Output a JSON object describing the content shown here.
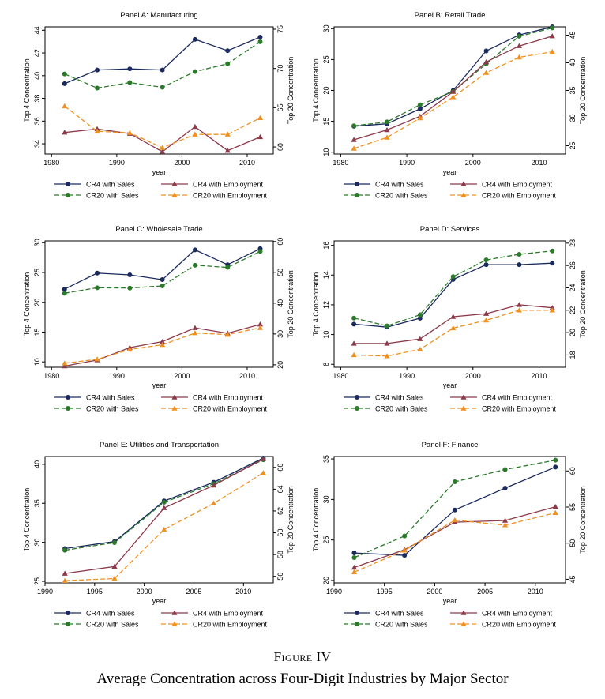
{
  "figure": {
    "label": "Figure IV",
    "caption": "Average Concentration across Four-Digit Industries by Major Sector"
  },
  "legend": {
    "cr4_sales": "CR4 with Sales",
    "cr4_emp": "CR4 with Employment",
    "cr20_sales": "CR20 with Sales",
    "cr20_emp": "CR20 with Employment"
  },
  "colors": {
    "cr4_sales": "#1a2a5e",
    "cr4_emp": "#8b3a4a",
    "cr20_sales": "#2a7a2a",
    "cr20_emp": "#f09020"
  },
  "chart_data": [
    {
      "type": "line",
      "title": "Panel A: Manufacturing",
      "xlabel": "year",
      "ylabel": "Top 4 Concentration",
      "y2label": "Top 20 Concentration",
      "xlim": [
        1979,
        2014
      ],
      "xticks": [
        1980,
        1990,
        2000,
        2010
      ],
      "ylim": [
        33.1,
        44.3
      ],
      "yticks": [
        34,
        36,
        38,
        40,
        42,
        44
      ],
      "y2lim": [
        59.1,
        75.3
      ],
      "y2ticks": [
        60,
        65,
        70,
        75
      ],
      "x": [
        1982,
        1987,
        1992,
        1997,
        2002,
        2007,
        2012
      ],
      "series": [
        {
          "name": "CR4 with Sales",
          "key": "cr4_sales",
          "axis": "left",
          "values": [
            39.3,
            40.5,
            40.6,
            40.5,
            43.2,
            42.2,
            43.4
          ]
        },
        {
          "name": "CR20 with Sales",
          "key": "cr20_sales",
          "axis": "right",
          "values": [
            69.3,
            67.5,
            68.2,
            67.6,
            69.6,
            70.6,
            73.4
          ]
        },
        {
          "name": "CR4 with Employment",
          "key": "cr4_emp",
          "axis": "left",
          "values": [
            35.0,
            35.3,
            34.9,
            33.3,
            35.5,
            33.4,
            34.6
          ]
        },
        {
          "name": "CR20 with Employment",
          "key": "cr20_emp",
          "axis": "right",
          "values": [
            65.2,
            62.0,
            61.8,
            59.9,
            61.6,
            61.6,
            63.7
          ]
        }
      ]
    },
    {
      "type": "line",
      "title": "Panel B: Retail Trade",
      "xlabel": "year",
      "ylabel": "Top 4 Concentration",
      "y2label": "Top 20 Concentration",
      "xlim": [
        1979,
        2014
      ],
      "xticks": [
        1980,
        1990,
        2000,
        2010
      ],
      "ylim": [
        9.7,
        30.3
      ],
      "yticks": [
        10,
        15,
        20,
        25,
        30
      ],
      "y2lim": [
        23.5,
        46.5
      ],
      "y2ticks": [
        25,
        30,
        35,
        40,
        45
      ],
      "x": [
        1982,
        1987,
        1992,
        1997,
        2002,
        2007,
        2012
      ],
      "series": [
        {
          "name": "CR4 with Sales",
          "key": "cr4_sales",
          "axis": "left",
          "values": [
            14.2,
            14.6,
            17.0,
            20.0,
            26.4,
            29.0,
            30.3
          ]
        },
        {
          "name": "CR20 with Sales",
          "key": "cr20_sales",
          "axis": "right",
          "values": [
            28.6,
            29.3,
            32.4,
            34.8,
            39.8,
            44.8,
            46.3
          ]
        },
        {
          "name": "CR4 with Employment",
          "key": "cr4_emp",
          "axis": "left",
          "values": [
            12.0,
            13.6,
            15.8,
            19.8,
            24.6,
            27.2,
            28.8
          ]
        },
        {
          "name": "CR20 with Employment",
          "key": "cr20_emp",
          "axis": "right",
          "values": [
            24.5,
            26.5,
            30.0,
            33.8,
            38.2,
            41.0,
            42.0
          ]
        }
      ]
    },
    {
      "type": "line",
      "title": "Panel C: Wholesale Trade",
      "xlabel": "year",
      "ylabel": "Top 4 Concentration",
      "y2label": "Top 20 Concentration",
      "xlim": [
        1979,
        2014
      ],
      "xticks": [
        1980,
        1990,
        2000,
        2010
      ],
      "ylim": [
        9.1,
        30.3
      ],
      "yticks": [
        10,
        15,
        20,
        25,
        30
      ],
      "y2lim": [
        19.2,
        60.2
      ],
      "y2ticks": [
        20,
        30,
        40,
        50,
        60
      ],
      "x": [
        1982,
        1987,
        1992,
        1997,
        2002,
        2007,
        2012
      ],
      "series": [
        {
          "name": "CR4 with Sales",
          "key": "cr4_sales",
          "axis": "left",
          "values": [
            22.2,
            24.9,
            24.6,
            23.8,
            28.8,
            26.3,
            29.0
          ]
        },
        {
          "name": "CR20 with Sales",
          "key": "cr20_sales",
          "axis": "right",
          "values": [
            43.2,
            45.0,
            44.9,
            45.6,
            52.3,
            51.6,
            56.8
          ]
        },
        {
          "name": "CR4 with Employment",
          "key": "cr4_emp",
          "axis": "left",
          "values": [
            9.3,
            10.3,
            12.4,
            13.4,
            15.7,
            14.8,
            16.3
          ]
        },
        {
          "name": "CR20 with Employment",
          "key": "cr20_emp",
          "axis": "right",
          "values": [
            20.5,
            21.8,
            25.0,
            26.5,
            30.3,
            29.8,
            32.0
          ]
        }
      ]
    },
    {
      "type": "line",
      "title": "Panel D: Services",
      "xlabel": "year",
      "ylabel": "Top 4 Concentration",
      "y2label": "Top 20 Concentration",
      "xlim": [
        1979,
        2014
      ],
      "xticks": [
        1980,
        1990,
        2000,
        2010
      ],
      "ylim": [
        7.8,
        16.3
      ],
      "yticks": [
        8,
        10,
        12,
        14,
        16
      ],
      "y2lim": [
        16.9,
        28.2
      ],
      "y2ticks": [
        18,
        20,
        22,
        24,
        26,
        28
      ],
      "x": [
        1982,
        1987,
        1992,
        1997,
        2002,
        2007,
        2012
      ],
      "series": [
        {
          "name": "CR4 with Sales",
          "key": "cr4_sales",
          "axis": "left",
          "values": [
            10.7,
            10.5,
            11.1,
            13.7,
            14.7,
            14.7,
            14.8
          ]
        },
        {
          "name": "CR20 with Sales",
          "key": "cr20_sales",
          "axis": "right",
          "values": [
            21.3,
            20.6,
            21.6,
            25.0,
            26.5,
            27.0,
            27.3
          ]
        },
        {
          "name": "CR4 with Employment",
          "key": "cr4_emp",
          "axis": "left",
          "values": [
            9.4,
            9.4,
            9.7,
            11.2,
            11.4,
            12.0,
            11.8
          ]
        },
        {
          "name": "CR20 with Employment",
          "key": "cr20_emp",
          "axis": "right",
          "values": [
            18.0,
            17.9,
            18.5,
            20.4,
            21.1,
            22.0,
            22.0
          ]
        }
      ]
    },
    {
      "type": "line",
      "title": "Panel E: Utilities and Transportation",
      "xlabel": "year",
      "ylabel": "Top 4 Concentration",
      "y2label": "Top 20 Concentration",
      "xlim": [
        1990,
        2013
      ],
      "xticks": [
        1990,
        1995,
        2000,
        2005,
        2010
      ],
      "ylim": [
        24.8,
        41.0
      ],
      "yticks": [
        25,
        30,
        35,
        40
      ],
      "y2lim": [
        55.4,
        67.0
      ],
      "y2ticks": [
        56,
        58,
        60,
        62,
        64,
        66
      ],
      "x": [
        1992,
        1997,
        2002,
        2007,
        2012
      ],
      "series": [
        {
          "name": "CR4 with Sales",
          "key": "cr4_sales",
          "axis": "left",
          "values": [
            29.2,
            30.1,
            35.3,
            37.7,
            40.8
          ]
        },
        {
          "name": "CR20 with Sales",
          "key": "cr20_sales",
          "axis": "right",
          "values": [
            58.4,
            59.1,
            62.8,
            64.5,
            66.7
          ]
        },
        {
          "name": "CR4 with Employment",
          "key": "cr4_emp",
          "axis": "left",
          "values": [
            26.0,
            26.9,
            34.4,
            37.3,
            40.7
          ]
        },
        {
          "name": "CR20 with Employment",
          "key": "cr20_emp",
          "axis": "right",
          "values": [
            55.6,
            55.8,
            60.3,
            62.7,
            65.5
          ]
        }
      ]
    },
    {
      "type": "line",
      "title": "Panel F: Finance",
      "xlabel": "year",
      "ylabel": "Top 4 Concentration",
      "y2label": "Top 20 Concentration",
      "xlim": [
        1990,
        2013
      ],
      "xticks": [
        1990,
        1995,
        2000,
        2005,
        2010
      ],
      "ylim": [
        19.7,
        35.3
      ],
      "yticks": [
        20,
        25,
        30,
        35
      ],
      "y2lim": [
        44.5,
        62.0
      ],
      "y2ticks": [
        45,
        50,
        55,
        60
      ],
      "x": [
        1992,
        1997,
        2002,
        2007,
        2012
      ],
      "series": [
        {
          "name": "CR4 with Sales",
          "key": "cr4_sales",
          "axis": "left",
          "values": [
            23.4,
            23.1,
            28.7,
            31.4,
            34.0
          ]
        },
        {
          "name": "CR20 with Sales",
          "key": "cr20_sales",
          "axis": "right",
          "values": [
            48.0,
            51.0,
            58.5,
            60.2,
            61.5
          ]
        },
        {
          "name": "CR4 with Employment",
          "key": "cr4_emp",
          "axis": "left",
          "values": [
            21.6,
            23.8,
            27.2,
            27.4,
            29.1
          ]
        },
        {
          "name": "CR20 with Employment",
          "key": "cr20_emp",
          "axis": "right",
          "values": [
            46.0,
            49.0,
            53.2,
            52.5,
            54.2
          ]
        }
      ]
    }
  ]
}
